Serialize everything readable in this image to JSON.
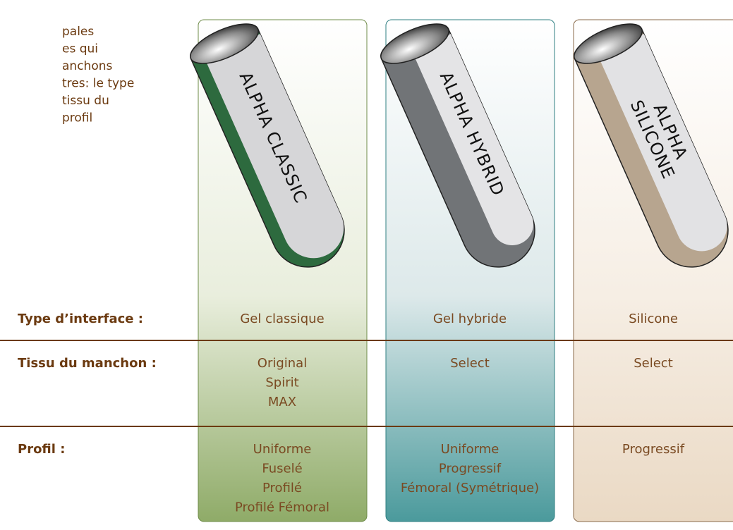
{
  "intro": [
    "pales",
    "es qui",
    "anchons",
    "tres: le type",
    "tissu du",
    "profil"
  ],
  "products": [
    {
      "name": [
        "ALPHA CLASSIC"
      ]
    },
    {
      "name": [
        "ALPHA HYBRID"
      ]
    },
    {
      "name": [
        "ALPHA",
        "SILICONE"
      ]
    }
  ],
  "rows": [
    {
      "label": "Type d’interface :",
      "cells": [
        [
          "Gel classique"
        ],
        [
          "Gel hybride"
        ],
        [
          "Silicone"
        ]
      ]
    },
    {
      "label": "Tissu du manchon :",
      "cells": [
        [
          "Original",
          "Spirit",
          "MAX"
        ],
        [
          "Select"
        ],
        [
          "Select"
        ]
      ]
    },
    {
      "label": "Profil :",
      "cells": [
        [
          "Uniforme",
          "Fuselé",
          "Profilé",
          "Profilé Fémoral"
        ],
        [
          "Uniforme",
          "Progressif",
          "Fémoral (Symétrique)"
        ],
        [
          "Progressif"
        ]
      ]
    }
  ]
}
